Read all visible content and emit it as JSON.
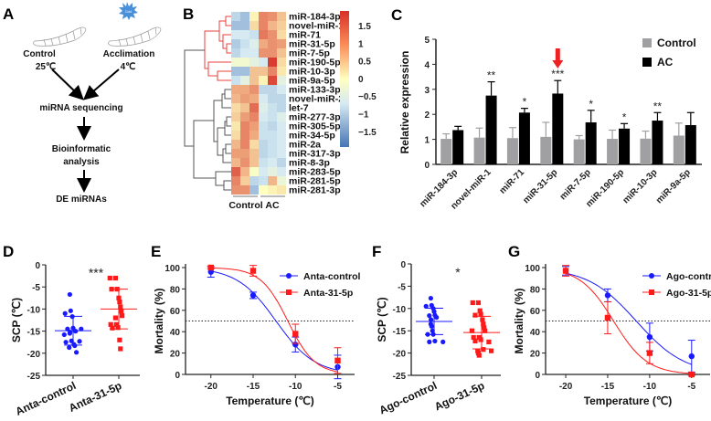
{
  "panel_labels": {
    "a": "A",
    "b": "B",
    "c": "C",
    "d": "D",
    "e": "E",
    "f": "F",
    "g": "G"
  },
  "panel_a": {
    "control_label": "Control",
    "control_temp": "25℃",
    "acclimation_label": "Acclimation",
    "acclimation_temp": "4℃",
    "cold_badge": "Cold",
    "step1": "miRNA sequencing",
    "step2_line1": "Bioinformatic",
    "step2_line2": "analysis",
    "step3": "DE miRNAs"
  },
  "chart_data": [
    {
      "panel": "B",
      "type": "heatmap",
      "rows": [
        "miR-184-3p",
        "novel-miR-1",
        "miR-71",
        "miR-31-5p",
        "miR-7-5p",
        "miR-190-5p",
        "miR-10-3p",
        "miR-9a-5p",
        "miR-133-3p",
        "novel-miR-2",
        "let-7",
        "miR-277-3p",
        "miR-305-5p",
        "miR-34-5p",
        "miR-2a",
        "miR-317-3p",
        "miR-8-3p",
        "miR-283-5p",
        "miR-281-5p",
        "miR-281-3p"
      ],
      "column_groups": [
        "Control",
        "AC"
      ],
      "values": [
        [
          -0.8,
          -1,
          0.1,
          1,
          0.9,
          0.5
        ],
        [
          -1,
          -1,
          0.3,
          1,
          0.6,
          0.4
        ],
        [
          -0.6,
          -0.6,
          -0.7,
          1.1,
          0.9,
          0.3
        ],
        [
          -0.9,
          -0.7,
          -0.5,
          0.7,
          0.9,
          0.8
        ],
        [
          -0.8,
          -0.6,
          -0.6,
          0.9,
          0.9,
          0.5
        ],
        [
          -0.2,
          -0.2,
          -0.4,
          -0.6,
          1.6,
          0.3
        ],
        [
          -1,
          -1,
          0.5,
          0.5,
          1,
          0.2
        ],
        [
          -0.7,
          -0.4,
          0.5,
          0.1,
          1.5,
          -0.4
        ],
        [
          0.7,
          0.7,
          0.9,
          -0.8,
          -0.8,
          -0.6
        ],
        [
          0.6,
          0.8,
          0.7,
          -0.6,
          -0.8,
          -0.8
        ],
        [
          0.3,
          0.5,
          1.2,
          -0.5,
          -0.7,
          -0.8
        ],
        [
          0.4,
          0.8,
          1,
          -0.6,
          -0.7,
          -0.5
        ],
        [
          0.2,
          1,
          0.8,
          -0.7,
          -0.8,
          -0.6
        ],
        [
          0.3,
          1,
          0.7,
          -0.7,
          -0.7,
          -0.6
        ],
        [
          0.6,
          1,
          0.3,
          -0.8,
          -0.7,
          -0.6
        ],
        [
          0.8,
          0.8,
          0.5,
          -0.8,
          -0.7,
          -0.6
        ],
        [
          0.6,
          0.9,
          0.5,
          -0.7,
          -0.6,
          -0.8
        ],
        [
          1.3,
          0.6,
          -0.1,
          -0.6,
          -0.4,
          -0.6
        ],
        [
          1,
          0.4,
          -0.8,
          -0.7,
          0.6,
          -0.3
        ],
        [
          0.9,
          0.9,
          -1,
          0,
          0.1,
          0.2
        ]
      ],
      "colorbar_ticks": [
        "1.5",
        "1",
        "0.5",
        "0",
        "−0.5",
        "−1",
        "−1.5"
      ],
      "colorbar_range": [
        -1.7,
        1.7
      ],
      "colors": {
        "low": "#4575b4",
        "mid": "#ffffbf",
        "high": "#d73027"
      }
    },
    {
      "panel": "C",
      "type": "bar",
      "categories": [
        "miR-184-3p",
        "novel-miR-1",
        "miR-71",
        "miR-31-5p",
        "miR-7-5p",
        "miR-190-5p",
        "miR-10-3p",
        "miR-9a-5p"
      ],
      "series": [
        {
          "name": "Control",
          "color": "#a0a0a2",
          "values": [
            1.02,
            1.07,
            1.05,
            1.1,
            1.0,
            1.02,
            1.03,
            1.15
          ],
          "errors": [
            0.2,
            0.38,
            0.42,
            0.58,
            0.15,
            0.35,
            0.3,
            0.5
          ]
        },
        {
          "name": "AC",
          "color": "#000000",
          "values": [
            1.37,
            2.75,
            2.07,
            2.83,
            1.68,
            1.43,
            1.75,
            1.57
          ],
          "errors": [
            0.15,
            0.55,
            0.17,
            0.52,
            0.48,
            0.2,
            0.32,
            0.5
          ]
        }
      ],
      "significance": [
        "",
        "**",
        "*",
        "***",
        "*",
        "*",
        "**",
        ""
      ],
      "highlight": "miR-31-5p",
      "ylabel": "Relative expression",
      "ylim": [
        0,
        5
      ],
      "yticks": [
        "0",
        "1",
        "2",
        "3",
        "4",
        "5"
      ],
      "legend": "top-right"
    },
    {
      "panel": "D",
      "type": "scatter",
      "ylabel": "SCP (℃)",
      "ylim": [
        -25,
        0
      ],
      "yticks": [
        "0",
        "-5",
        "-10",
        "-15",
        "-20",
        "-25"
      ],
      "significance": "***",
      "groups": [
        {
          "name": "Anta-control",
          "color": "#1a1aff",
          "marker": "circle",
          "mean": -14.9,
          "sd": 3.25,
          "values": [
            -6.7,
            -10.4,
            -11,
            -11.7,
            -14.3,
            -14.5,
            -14.5,
            -15,
            -15.2,
            -15.5,
            -15.8,
            -17.2,
            -17.5,
            -17.3,
            -18,
            -18.3,
            -18.7,
            -19.8
          ]
        },
        {
          "name": "Anta-31-5p",
          "color": "#ff1a1a",
          "marker": "square",
          "mean": -10,
          "sd": 4.5,
          "values": [
            -3,
            -3,
            -5.5,
            -5.5,
            -7.5,
            -8.4,
            -9.5,
            -10.5,
            -11.5,
            -12,
            -13.5,
            -13.5,
            -14.2,
            -14.3,
            -17,
            -19
          ]
        }
      ]
    },
    {
      "panel": "E",
      "type": "line",
      "xlabel": "Temperature (℃)",
      "ylabel": "Mortality (%)",
      "xlim": [
        -23,
        -3
      ],
      "ylim": [
        0,
        100
      ],
      "xticks": [
        "-20",
        "-15",
        "-10",
        "-5"
      ],
      "yticks": [
        "0",
        "20",
        "40",
        "60",
        "80",
        "100"
      ],
      "reference_y": 50,
      "legend": "top-right",
      "series": [
        {
          "name": "Anta-control",
          "color": "#1a1aff",
          "marker": "circle",
          "x": [
            -20,
            -15,
            -10,
            -5
          ],
          "y": [
            96,
            74,
            28,
            7
          ],
          "err": [
            5,
            3,
            7,
            11
          ],
          "fit_x50": -12.3,
          "fit_slope": 2.3
        },
        {
          "name": "Anta-31-5p",
          "color": "#ff1a1a",
          "marker": "square",
          "x": [
            -20,
            -15,
            -10,
            -5
          ],
          "y": [
            100,
            97,
            38,
            13
          ],
          "err": [
            1,
            5,
            9,
            12
          ],
          "fit_x50": -10.9,
          "fit_slope": 1.6
        }
      ]
    },
    {
      "panel": "F",
      "type": "scatter",
      "ylabel": "SCP (℃)",
      "ylim": [
        -25,
        0
      ],
      "yticks": [
        "0",
        "-5",
        "-10",
        "-15",
        "-20",
        "-25"
      ],
      "significance": "*",
      "groups": [
        {
          "name": "Ago-control",
          "color": "#1a1aff",
          "marker": "circle",
          "mean": -12.9,
          "sd": 2.95,
          "values": [
            -7.7,
            -9.3,
            -9.5,
            -10,
            -10.7,
            -11.5,
            -11.6,
            -12,
            -12.5,
            -13.5,
            -14,
            -15,
            -15.8,
            -15.8,
            -17.3,
            -17.5,
            -17.5
          ]
        },
        {
          "name": "Ago-31-5p",
          "color": "#ff1a1a",
          "marker": "square",
          "mean": -15.4,
          "sd": 3.65,
          "values": [
            -8.7,
            -8.7,
            -10.5,
            -11.3,
            -11.5,
            -12.5,
            -13.5,
            -14.3,
            -15,
            -15,
            -16.5,
            -16.5,
            -17,
            -17.3,
            -17.5,
            -19.2,
            -19.5,
            -19.5,
            -20,
            -20.5
          ]
        }
      ]
    },
    {
      "panel": "G",
      "type": "line",
      "xlabel": "Temperature (℃)",
      "ylabel": "Mortality (%)",
      "xlim": [
        -22.4,
        -2.8
      ],
      "ylim": [
        0,
        100
      ],
      "xticks": [
        "-20",
        "-15",
        "-10",
        "-5"
      ],
      "yticks": [
        "0",
        "20",
        "40",
        "60",
        "80",
        "100"
      ],
      "reference_y": 50,
      "legend": "top-right",
      "series": [
        {
          "name": "Ago-control",
          "color": "#1a1aff",
          "marker": "circle",
          "x": [
            -20,
            -15,
            -10,
            -5
          ],
          "y": [
            97,
            74,
            35,
            17
          ],
          "err": [
            4,
            6,
            13,
            15
          ],
          "fit_x50": -11.6,
          "fit_slope": 2.9
        },
        {
          "name": "Ago-31-5p",
          "color": "#ff1a1a",
          "marker": "square",
          "x": [
            -20,
            -15,
            -10,
            -5
          ],
          "y": [
            97,
            53,
            20,
            0
          ],
          "err": [
            5,
            15,
            10,
            1
          ],
          "fit_x50": -14.3,
          "fit_slope": 2.0
        }
      ]
    }
  ]
}
